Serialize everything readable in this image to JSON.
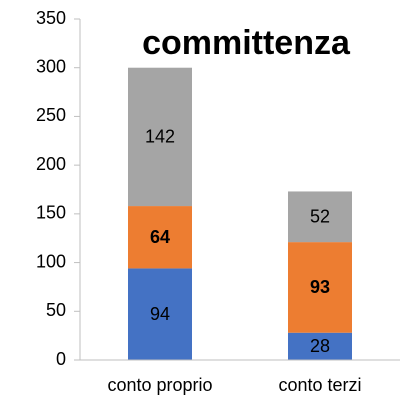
{
  "chart_data": {
    "type": "stacked_bar",
    "title": "committenza",
    "categories": [
      "conto proprio",
      "conto terzi"
    ],
    "series": [
      {
        "name": "blue",
        "color": "#4472c4",
        "values": [
          94,
          28
        ]
      },
      {
        "name": "orange",
        "color": "#ed7d31",
        "values": [
          64,
          93
        ],
        "bold_labels": true
      },
      {
        "name": "gray",
        "color": "#a5a5a5",
        "values": [
          142,
          52
        ]
      }
    ],
    "ylim": [
      0,
      350
    ],
    "yticks": [
      0,
      50,
      100,
      150,
      200,
      250,
      300,
      350
    ]
  }
}
